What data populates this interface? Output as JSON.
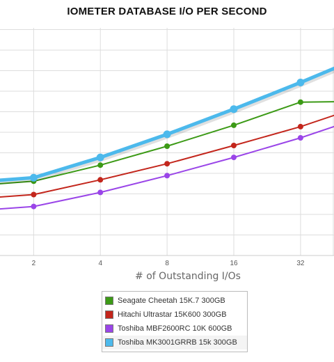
{
  "chart_data": {
    "type": "line",
    "title": "IOMETER DATABASE I/O PER SECOND",
    "xlabel": "# of Outstanding I/Os",
    "ylabel": "",
    "x_scale": "log2",
    "categories": [
      "2",
      "4",
      "8",
      "16",
      "32"
    ],
    "x_visible_range": [
      1.41,
      45.3
    ],
    "grid": true,
    "legend_position": "bottom",
    "series": [
      {
        "name": "Seagate Cheetah 15K.7 300GB",
        "color": "#3c9a16",
        "width": 2,
        "x": [
          1,
          2,
          4,
          8,
          16,
          32,
          64
        ],
        "y": [
          99,
          106,
          129,
          156,
          186,
          219,
          220
        ]
      },
      {
        "name": "Hitachi Ultrastar 15K600 300GB",
        "color": "#c3261c",
        "width": 2,
        "x": [
          1,
          2,
          4,
          8,
          16,
          32,
          64
        ],
        "y": [
          80,
          87,
          108,
          131,
          157,
          184,
          216
        ]
      },
      {
        "name": "Toshiba MBF2600RC 10K 600GB",
        "color": "#9a45e8",
        "width": 2,
        "x": [
          1,
          2,
          4,
          8,
          16,
          32,
          64
        ],
        "y": [
          63,
          70,
          90,
          114,
          140,
          168,
          200
        ]
      },
      {
        "name": "Toshiba MK3001GRRB 15k 300GB",
        "color": "#4cb9ec",
        "width": 5,
        "x": [
          1,
          2,
          4,
          8,
          16,
          32,
          64
        ],
        "y": [
          104,
          111,
          140,
          173,
          209,
          247,
          287
        ]
      }
    ]
  }
}
